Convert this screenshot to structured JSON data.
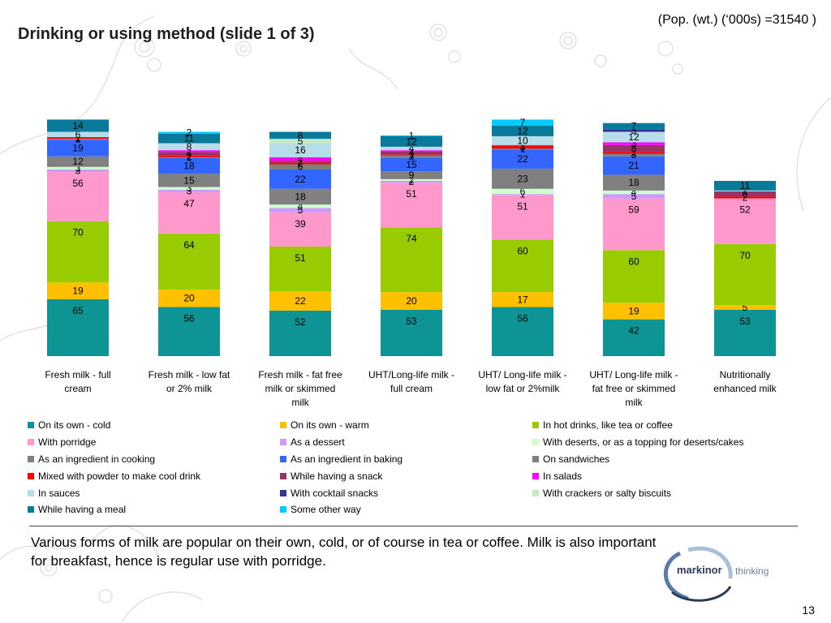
{
  "slide": {
    "title": "Drinking or using method (slide 1 of 3)",
    "population": "(Pop. (wt.) (‘000s) =31540 )",
    "caption": "Various forms of milk are popular on their own, cold, or of course in tea or coffee. Milk is also important for breakfast, hence is regular use with porridge.",
    "page_number": "13",
    "logo": {
      "name": "markinor",
      "tagline": "thinking"
    }
  },
  "chart_data": {
    "type": "bar",
    "stacked": true,
    "title": "",
    "xlabel": "",
    "ylabel": "",
    "ylim": [
      0,
      310
    ],
    "grid": false,
    "legend_position": "bottom",
    "categories": [
      [
        "Fresh milk - full",
        "cream"
      ],
      [
        "Fresh milk - low fat",
        "or 2% milk"
      ],
      [
        "Fresh milk - fat free",
        "milk or skimmed",
        "milk"
      ],
      [
        "UHT/Long-life milk -",
        "full cream"
      ],
      [
        "UHT/ Long-life milk -",
        "low fat or 2%milk"
      ],
      [
        "UHT/ Long-life milk -",
        "fat free or skimmed",
        "milk"
      ],
      [
        "Nutritionally",
        "enhanced milk"
      ]
    ],
    "series": [
      {
        "name": "On its own - cold",
        "color": "#0e9494",
        "values": [
          65,
          56,
          52,
          53,
          56,
          42,
          53
        ]
      },
      {
        "name": "On its own - warm",
        "color": "#ffc000",
        "values": [
          19,
          20,
          22,
          20,
          17,
          19,
          5
        ]
      },
      {
        "name": "In hot drinks, like tea or coffee",
        "color": "#99cc00",
        "values": [
          70,
          64,
          51,
          74,
          60,
          60,
          70
        ]
      },
      {
        "name": "With porridge",
        "color": "#ff99cc",
        "values": [
          56,
          47,
          39,
          51,
          51,
          59,
          52
        ]
      },
      {
        "name": "As a dessert",
        "color": "#cc99ff",
        "values": [
          3,
          3,
          5,
          2,
          1,
          5,
          0
        ]
      },
      {
        "name": "With deserts, or as a topping for deserts/cakes",
        "color": "#ccffcc",
        "values": [
          3,
          3,
          4,
          2,
          6,
          4,
          0
        ]
      },
      {
        "name": "As an ingredient in cooking",
        "color": "#808080",
        "values": [
          12,
          15,
          18,
          9,
          23,
          18,
          0
        ]
      },
      {
        "name": "As an ingredient in baking",
        "color": "#3366ff",
        "values": [
          19,
          18,
          22,
          15,
          22,
          21,
          0
        ]
      },
      {
        "name": "On sandwiches",
        "color": "#7f7f7f",
        "values": [
          1,
          1,
          6,
          3,
          1,
          3,
          0
        ]
      },
      {
        "name": "Mixed with powder to make cool drink",
        "color": "#ff0000",
        "values": [
          1,
          2,
          2,
          1,
          3,
          2,
          2
        ]
      },
      {
        "name": "While having a snack",
        "color": "#993366",
        "values": [
          1,
          4,
          2,
          4,
          1,
          8,
          6
        ]
      },
      {
        "name": "In salads",
        "color": "#ff00ff",
        "values": [
          0,
          2,
          4,
          1,
          0,
          3,
          0
        ]
      },
      {
        "name": "In sauces",
        "color": "#b7dee8",
        "values": [
          6,
          8,
          16,
          4,
          10,
          12,
          1
        ]
      },
      {
        "name": "With cocktail snacks",
        "color": "#333399",
        "values": [
          0,
          0,
          0,
          0,
          0,
          3,
          0
        ]
      },
      {
        "name": "With crackers or salty biscuits",
        "color": "#c4e9c4",
        "values": [
          0,
          0,
          5,
          0,
          0,
          0,
          0
        ]
      },
      {
        "name": "While having a meal",
        "color": "#0a7a9a",
        "values": [
          14,
          11,
          8,
          12,
          12,
          7,
          11
        ]
      },
      {
        "name": "Some other way",
        "color": "#00ccff",
        "values": [
          0,
          2,
          0,
          1,
          7,
          0,
          0
        ]
      }
    ]
  }
}
